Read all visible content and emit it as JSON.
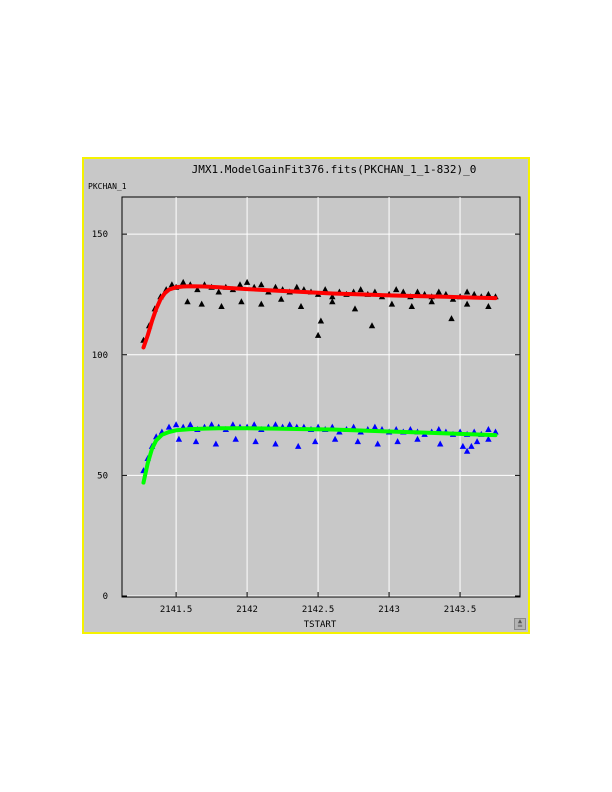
{
  "chart_data": {
    "type": "scatter",
    "title": "JMX1.ModelGainFit376.fits(PKCHAN_1_1-832)_0",
    "xlabel": "TSTART",
    "ylabel": "PKCHAN_1",
    "xlim": [
      2141.14,
      2143.88
    ],
    "ylim": [
      0,
      160
    ],
    "x_ticks": [
      2141.5,
      2142,
      2142.5,
      2143,
      2143.5
    ],
    "x_tick_labels": [
      "2141.5",
      "2142",
      "2142.5",
      "2143",
      "2143.5"
    ],
    "y_ticks": [
      0,
      50,
      100,
      150
    ],
    "y_tick_labels": [
      "0",
      "50",
      "100",
      "150"
    ],
    "grid": true,
    "series": [
      {
        "kind": "scatter",
        "marker": "triangle",
        "color": "#000000",
        "x": [
          2141.27,
          2141.31,
          2141.35,
          2141.39,
          2141.43,
          2141.47,
          2141.5,
          2141.55,
          2141.6,
          2141.65,
          2141.7,
          2141.75,
          2141.8,
          2141.85,
          2141.9,
          2141.95,
          2142.0,
          2142.05,
          2142.1,
          2142.15,
          2142.2,
          2142.25,
          2142.3,
          2142.35,
          2142.4,
          2142.45,
          2142.5,
          2142.55,
          2142.6,
          2142.65,
          2142.7,
          2142.75,
          2142.8,
          2142.85,
          2142.9,
          2142.95,
          2143.0,
          2143.05,
          2143.1,
          2143.15,
          2143.2,
          2143.25,
          2143.3,
          2143.35,
          2143.4,
          2143.45,
          2143.5,
          2143.55,
          2143.6,
          2143.65,
          2143.7,
          2143.75
        ],
        "y": [
          106,
          112,
          119,
          124,
          127,
          129,
          128,
          130,
          129,
          127,
          129,
          128,
          126,
          128,
          127,
          129,
          130,
          128,
          129,
          126,
          128,
          127,
          126,
          128,
          127,
          126,
          125,
          127,
          124,
          126,
          125,
          126,
          127,
          125,
          126,
          124,
          125,
          127,
          126,
          124,
          126,
          125,
          124,
          126,
          125,
          123,
          124,
          126,
          125,
          124,
          125,
          124
        ]
      },
      {
        "kind": "scatter",
        "marker": "triangle",
        "color": "#000000",
        "x": [
          2141.58,
          2141.68,
          2141.82,
          2141.96,
          2142.1,
          2142.24,
          2142.38,
          2142.5,
          2142.52,
          2142.6,
          2142.76,
          2142.88,
          2143.02,
          2143.16,
          2143.3,
          2143.44,
          2143.55,
          2143.7
        ],
        "y": [
          122,
          121,
          120,
          122,
          121,
          123,
          120,
          108,
          114,
          122,
          119,
          112,
          121,
          120,
          122,
          115,
          121,
          120
        ]
      },
      {
        "kind": "line",
        "color": "#ff0000",
        "x": [
          2141.27,
          2141.3,
          2141.33,
          2141.36,
          2141.39,
          2141.42,
          2141.45,
          2141.5,
          2141.55,
          2141.6,
          2141.7,
          2141.8,
          2141.9,
          2142.0,
          2142.2,
          2142.4,
          2142.6,
          2142.8,
          2143.0,
          2143.2,
          2143.4,
          2143.6,
          2143.75
        ],
        "y": [
          103,
          108,
          114,
          119,
          123,
          125.5,
          127,
          128,
          128.3,
          128.4,
          128.3,
          128,
          127.6,
          127.2,
          126.6,
          126,
          125.4,
          125,
          124.6,
          124.3,
          124,
          123.7,
          123.5
        ]
      },
      {
        "kind": "scatter",
        "marker": "triangle",
        "color": "#0000ff",
        "x": [
          2141.27,
          2141.3,
          2141.33,
          2141.36,
          2141.4,
          2141.45,
          2141.5,
          2141.55,
          2141.6,
          2141.65,
          2141.7,
          2141.75,
          2141.8,
          2141.85,
          2141.9,
          2141.95,
          2142.0,
          2142.05,
          2142.1,
          2142.15,
          2142.2,
          2142.25,
          2142.3,
          2142.35,
          2142.4,
          2142.45,
          2142.5,
          2142.55,
          2142.6,
          2142.65,
          2142.7,
          2142.75,
          2142.8,
          2142.85,
          2142.9,
          2142.95,
          2143.0,
          2143.05,
          2143.1,
          2143.15,
          2143.2,
          2143.25,
          2143.3,
          2143.35,
          2143.4,
          2143.45,
          2143.5,
          2143.55,
          2143.6,
          2143.65,
          2143.7,
          2143.75
        ],
        "y": [
          52,
          57,
          62,
          66,
          68,
          70,
          71,
          70,
          71,
          69,
          70,
          71,
          70,
          69,
          71,
          70,
          70,
          71,
          69,
          70,
          71,
          70,
          71,
          70,
          70,
          69,
          70,
          69,
          70,
          68,
          69,
          70,
          68,
          69,
          70,
          69,
          68,
          69,
          68,
          69,
          68,
          67,
          68,
          69,
          68,
          67,
          68,
          67,
          68,
          67,
          69,
          68
        ]
      },
      {
        "kind": "scatter",
        "marker": "triangle",
        "color": "#0000ff",
        "x": [
          2141.52,
          2141.64,
          2141.78,
          2141.92,
          2142.06,
          2142.2,
          2142.36,
          2142.48,
          2142.62,
          2142.78,
          2142.92,
          2143.06,
          2143.2,
          2143.36,
          2143.52,
          2143.55,
          2143.58,
          2143.62,
          2143.7
        ],
        "y": [
          65,
          64,
          63,
          65,
          64,
          63,
          62,
          64,
          65,
          64,
          63,
          64,
          65,
          63,
          62,
          60,
          62,
          64,
          65
        ]
      },
      {
        "kind": "line",
        "color": "#00ff00",
        "x": [
          2141.27,
          2141.3,
          2141.33,
          2141.36,
          2141.4,
          2141.45,
          2141.5,
          2141.6,
          2141.7,
          2141.8,
          2142.0,
          2142.2,
          2142.4,
          2142.6,
          2142.8,
          2143.0,
          2143.2,
          2143.4,
          2143.6,
          2143.75
        ],
        "y": [
          47,
          55,
          61,
          64.5,
          66.8,
          68,
          68.7,
          69.2,
          69.4,
          69.5,
          69.5,
          69.4,
          69.2,
          69,
          68.6,
          68.2,
          67.8,
          67.4,
          67,
          66.7
        ]
      }
    ]
  }
}
